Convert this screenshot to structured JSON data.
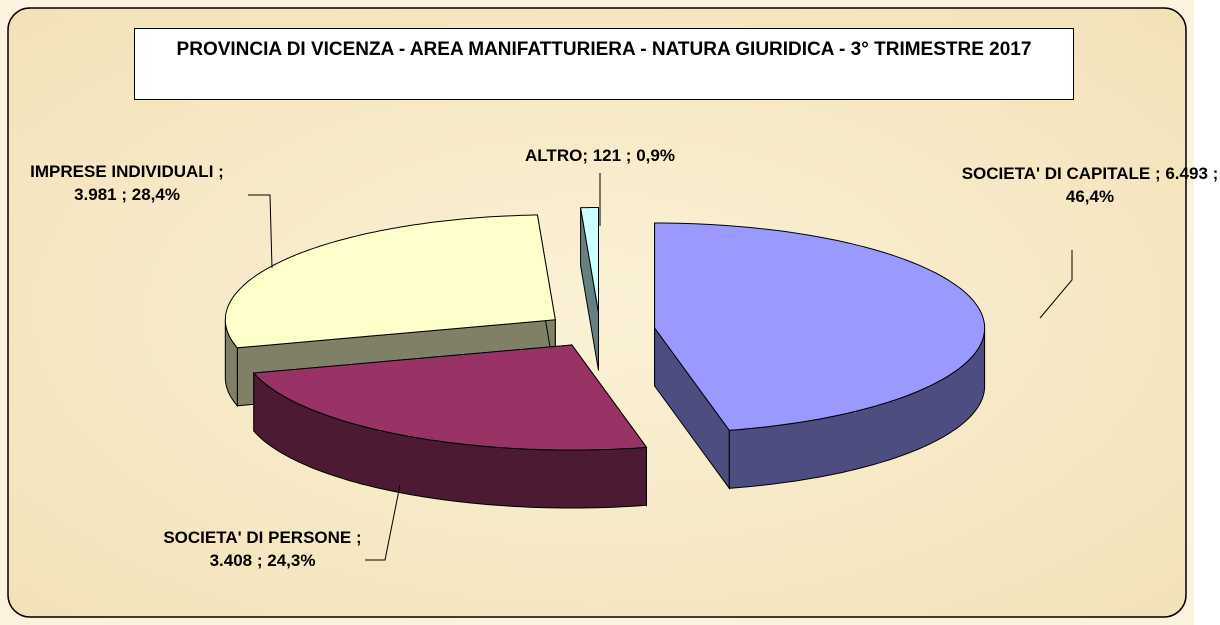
{
  "chart_data": {
    "type": "pie3d",
    "title": "PROVINCIA DI VICENZA - AREA MANIFATTURIERA - NATURA GIURIDICA - 3° TRIMESTRE 2017",
    "categories": [
      "SOCIETA' DI CAPITALE",
      "SOCIETA' DI PERSONE",
      "IMPRESE INDIVIDUALI",
      "ALTRO"
    ],
    "values": [
      6493,
      3408,
      3981,
      121
    ],
    "value_labels": [
      "; 6.493 ;",
      "; 3.408 ;",
      "; 3.981 ;",
      "; 121 ;"
    ],
    "percentages": [
      46.4,
      24.3,
      28.4,
      0.9
    ],
    "percentage_labels": [
      "46,4%",
      "24,3%",
      "28,4%",
      "0,9%"
    ],
    "colors": [
      "#9999ff",
      "#993366",
      "#ffffcc",
      "#ccffff"
    ],
    "side_colors": [
      "#4d4d80",
      "#4d1a33",
      "#808066",
      "#668080"
    ]
  }
}
